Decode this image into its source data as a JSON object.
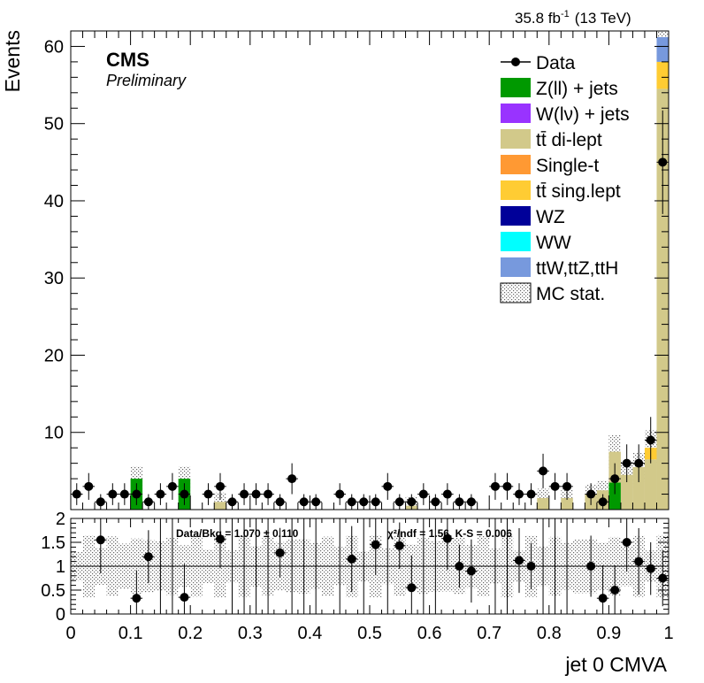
{
  "header": {
    "lumi_text": "35.8 fb",
    "lumi_sup": "-1",
    "energy_text": "(13 TeV)",
    "experiment": "CMS",
    "status": "Preliminary"
  },
  "axes": {
    "ylabel": "Events",
    "xlabel": "jet 0 CMVA",
    "main_yticks": [
      "10",
      "20",
      "30",
      "40",
      "50",
      "60"
    ],
    "ratio_yticks": [
      "0",
      "0.5",
      "1",
      "1.5",
      "2"
    ],
    "xticks": [
      "0",
      "0.1",
      "0.2",
      "0.3",
      "0.4",
      "0.5",
      "0.6",
      "0.7",
      "0.8",
      "0.9",
      "1"
    ]
  },
  "ratio_info": {
    "data_bkg": "Data/Bkg = 1.070 ± 0.110",
    "chi2": "χ²/ndf = 1.56,   K-S = 0.006"
  },
  "legend": [
    {
      "label": "Data",
      "kind": "marker",
      "color": "#000000"
    },
    {
      "label": "Z(ll) + jets",
      "kind": "box",
      "color": "#009900"
    },
    {
      "label": "W(lν) + jets",
      "kind": "box",
      "color": "#9933ff"
    },
    {
      "label": "tt̄ di-lept",
      "kind": "box",
      "color": "#d2c98a"
    },
    {
      "label": "Single-t",
      "kind": "box",
      "color": "#ff9933"
    },
    {
      "label": "tt̄ sing.lept",
      "kind": "box",
      "color": "#ffcc33"
    },
    {
      "label": "WZ",
      "kind": "box",
      "color": "#000099"
    },
    {
      "label": "WW",
      "kind": "box",
      "color": "#00ffff"
    },
    {
      "label": "ttW,ttZ,ttH",
      "kind": "box",
      "color": "#7799dd"
    },
    {
      "label": "MC stat.",
      "kind": "hatch",
      "color": "#555555"
    }
  ],
  "chart_data": {
    "type": "bar",
    "stacked": true,
    "xlim": [
      0,
      1
    ],
    "ylim": [
      0,
      62
    ],
    "ratio_ylim": [
      0,
      2
    ],
    "bins": 50,
    "data_x": [
      0.01,
      0.03,
      0.05,
      0.07,
      0.09,
      0.11,
      0.13,
      0.15,
      0.17,
      0.19,
      0.23,
      0.25,
      0.27,
      0.29,
      0.31,
      0.33,
      0.35,
      0.37,
      0.39,
      0.41,
      0.45,
      0.47,
      0.49,
      0.51,
      0.53,
      0.55,
      0.57,
      0.59,
      0.61,
      0.63,
      0.65,
      0.67,
      0.71,
      0.73,
      0.75,
      0.77,
      0.79,
      0.81,
      0.83,
      0.87,
      0.89,
      0.91,
      0.93,
      0.95,
      0.97,
      0.99
    ],
    "data_y": [
      2,
      3,
      1,
      2,
      2,
      2,
      1,
      2,
      3,
      2,
      2,
      3,
      1,
      2,
      2,
      2,
      1,
      4,
      1,
      1,
      2,
      1,
      1,
      1,
      3,
      1,
      1,
      2,
      1,
      2,
      1,
      1,
      3,
      3,
      2,
      2,
      5,
      3,
      3,
      2,
      1,
      4,
      6,
      6,
      9,
      45
    ],
    "ratio_x": [
      0.05,
      0.11,
      0.13,
      0.19,
      0.25,
      0.35,
      0.47,
      0.51,
      0.55,
      0.57,
      0.63,
      0.65,
      0.67,
      0.75,
      0.77,
      0.87,
      0.89,
      0.91,
      0.93,
      0.95,
      0.97,
      0.99
    ],
    "ratio_y": [
      1.55,
      0.33,
      1.2,
      0.35,
      1.57,
      1.28,
      1.15,
      1.45,
      1.43,
      0.55,
      1.58,
      1.0,
      0.9,
      1.12,
      1.0,
      1.0,
      0.33,
      0.5,
      1.5,
      1.1,
      0.95,
      0.75
    ],
    "series": [
      {
        "name": "Z(ll) + jets",
        "color": "#009900",
        "values": {
          "0.11": 4,
          "0.19": 4,
          "0.91": 3.5
        }
      },
      {
        "name": "tt̄ di-lept",
        "color": "#d2c98a",
        "values": {
          "0.25": 1,
          "0.57": 0.5,
          "0.79": 1.5,
          "0.83": 1.5,
          "0.87": 2,
          "0.89": 2.5,
          "0.91": 4,
          "0.93": 4.5,
          "0.95": 5.5,
          "0.97": 6.5,
          "0.99": 54.5
        }
      },
      {
        "name": "tt̄ sing.lept",
        "color": "#ffcc33",
        "values": {
          "0.97": 1.5,
          "0.99": 3.5
        }
      },
      {
        "name": "ttW,ttZ,ttH",
        "color": "#7799dd",
        "values": {
          "0.99": 3.2
        }
      }
    ]
  }
}
